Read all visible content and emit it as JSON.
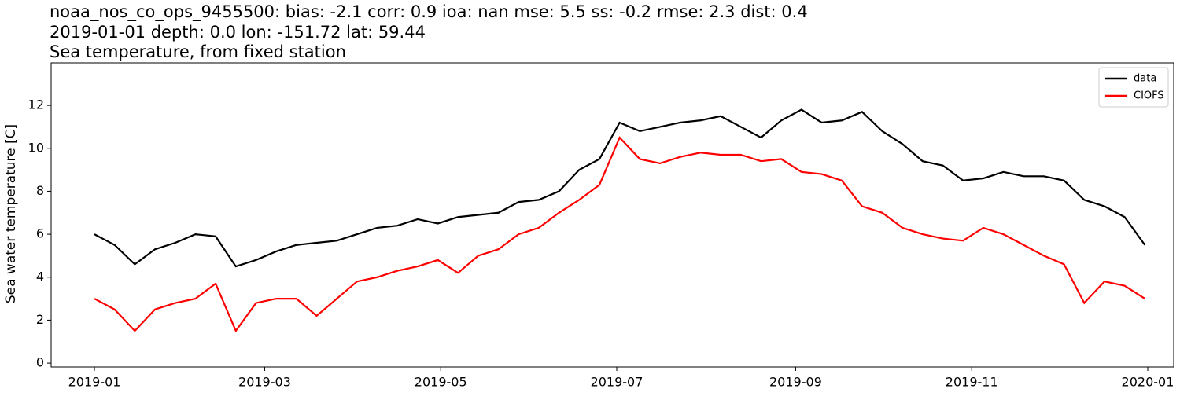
{
  "chart_data": {
    "type": "line",
    "title_lines": [
      "noaa_nos_co_ops_9455500: bias: -2.1  corr: 0.9  ioa: nan  mse: 5.5  ss: -0.2  rmse: 2.3  dist: 0.4",
      "2019-01-01 depth: 0.0 lon: -151.72 lat: 59.44",
      "Sea temperature, from fixed station"
    ],
    "ylabel": "Sea water temperature [C]",
    "x": [
      0,
      7,
      14,
      21,
      28,
      35,
      42,
      49,
      56,
      63,
      70,
      77,
      84,
      91,
      98,
      105,
      112,
      119,
      126,
      133,
      140,
      147,
      154,
      161,
      168,
      175,
      182,
      189,
      196,
      203,
      210,
      217,
      224,
      231,
      238,
      245,
      252,
      259,
      266,
      273,
      280,
      287,
      294,
      301,
      308,
      315,
      322,
      329,
      336,
      343,
      350,
      357,
      364
    ],
    "series": [
      {
        "name": "data",
        "color": "#000000",
        "values": [
          6.0,
          5.5,
          4.6,
          5.3,
          5.6,
          6.0,
          5.9,
          4.5,
          4.8,
          5.2,
          5.5,
          5.6,
          5.7,
          6.0,
          6.3,
          6.4,
          6.7,
          6.5,
          6.8,
          6.9,
          7.0,
          7.5,
          7.6,
          8.0,
          9.0,
          9.5,
          11.2,
          10.8,
          11.0,
          11.2,
          11.3,
          11.5,
          11.0,
          10.5,
          11.3,
          11.8,
          11.2,
          11.3,
          11.7,
          10.8,
          10.2,
          9.4,
          9.2,
          8.5,
          8.6,
          8.9,
          8.7,
          8.7,
          8.5,
          7.6,
          7.3,
          6.8,
          5.5
        ]
      },
      {
        "name": "CIOFS",
        "color": "#ff0000",
        "values": [
          3.0,
          2.5,
          1.5,
          2.5,
          2.8,
          3.0,
          3.7,
          1.5,
          2.8,
          3.0,
          3.0,
          2.2,
          3.0,
          3.8,
          4.0,
          4.3,
          4.5,
          4.8,
          4.2,
          5.0,
          5.3,
          6.0,
          6.3,
          7.0,
          7.6,
          8.3,
          10.5,
          9.5,
          9.3,
          9.6,
          9.8,
          9.7,
          9.7,
          9.4,
          9.5,
          8.9,
          8.8,
          8.5,
          7.3,
          7.0,
          6.3,
          6.0,
          5.8,
          5.7,
          6.3,
          6.0,
          5.5,
          5.0,
          4.6,
          2.8,
          3.8,
          3.6,
          3.0
        ]
      }
    ],
    "xlim": [
      -15,
      374
    ],
    "xticks": [
      {
        "value": 0,
        "label": "2019-01"
      },
      {
        "value": 59,
        "label": "2019-03"
      },
      {
        "value": 120,
        "label": "2019-05"
      },
      {
        "value": 181,
        "label": "2019-07"
      },
      {
        "value": 243,
        "label": "2019-09"
      },
      {
        "value": 304,
        "label": "2019-11"
      },
      {
        "value": 365,
        "label": "2020-01"
      }
    ],
    "ylim": [
      -0.18,
      13.98
    ],
    "yticks": [
      0,
      2,
      4,
      6,
      8,
      10,
      12
    ],
    "legend": "upper right"
  }
}
